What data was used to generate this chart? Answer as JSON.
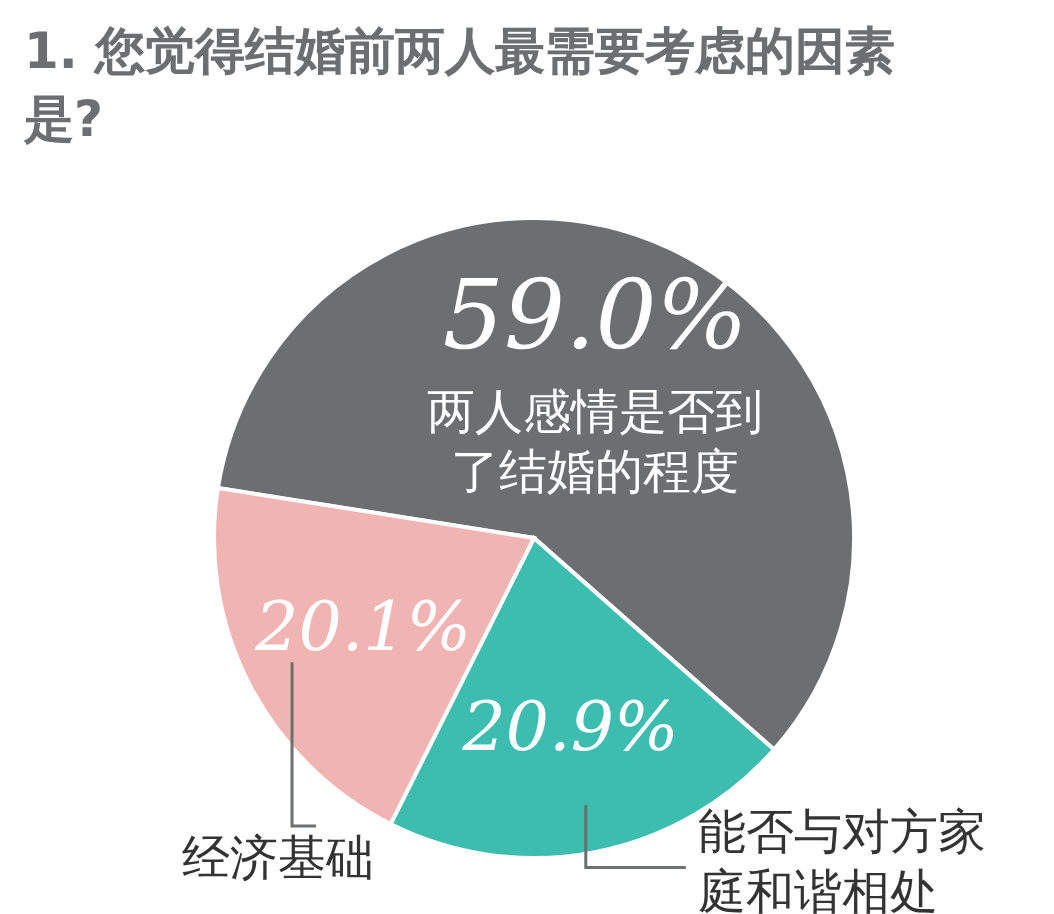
{
  "chart_data": {
    "type": "pie",
    "title": "1. 您觉得结婚前两人最需要考虑的因素是?",
    "categories": [
      "两人感情是否到了结婚的程度",
      "能否与对方家庭和谐相处",
      "经济基础"
    ],
    "values": [
      59.0,
      20.9,
      20.1
    ],
    "value_labels": [
      "59.0%",
      "20.9%",
      "20.1%"
    ],
    "colors": [
      "#6d6e70",
      "#3dbcb0",
      "#f0b4b2"
    ]
  }
}
